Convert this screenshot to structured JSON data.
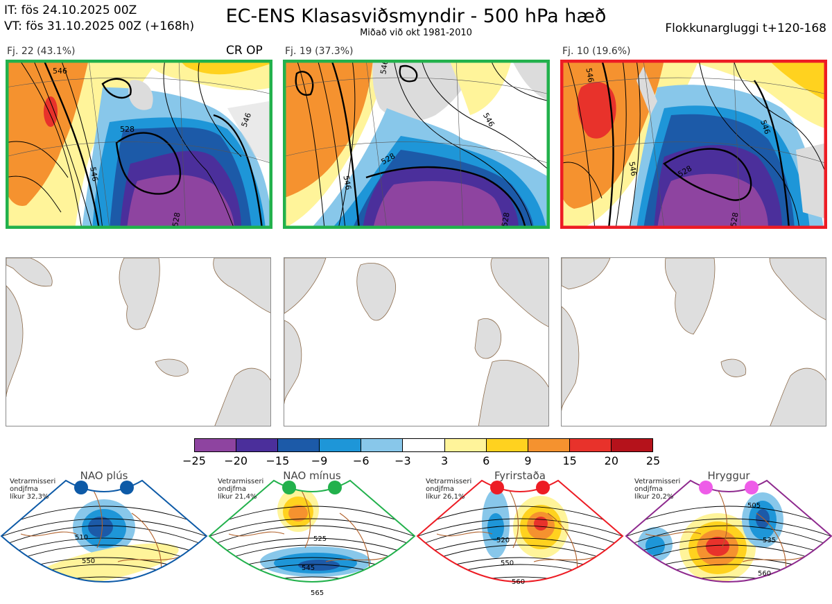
{
  "header": {
    "it_line": "IT: fös 24.10.2025 00Z",
    "vt_line": "VT: fös 31.10.2025 00Z  (+168h)",
    "title": "EC-ENS Klasasviðsmyndir - 500 hPa hæð",
    "subtitle": "Miðað við okt 1981-2010",
    "window": "Flokkunargluggi t+120-168"
  },
  "panels": [
    {
      "label": "Fj. 22 (43.1%)",
      "extra": "CR OP",
      "border_color": "#22b14c",
      "contours": [
        "546",
        "528",
        "546",
        "528",
        "546"
      ]
    },
    {
      "label": "Fj. 19 (37.3%)",
      "extra": "",
      "border_color": "#22b14c",
      "contours": [
        "546",
        "528",
        "546",
        "528",
        "546"
      ]
    },
    {
      "label": "Fj. 10 (19.6%)",
      "extra": "",
      "border_color": "#ed1c24",
      "contours": [
        "546",
        "528",
        "546",
        "528",
        "546"
      ]
    }
  ],
  "colorbar": {
    "colors": [
      "#8e44a0",
      "#4b2f9b",
      "#1c5aa8",
      "#1e96d8",
      "#88c7ea",
      "#ffffff",
      "#fff49a",
      "#ffd21f",
      "#f5922f",
      "#e8322b",
      "#b5121b"
    ],
    "ticks": [
      "−25",
      "−20",
      "−15",
      "−9",
      "−6",
      "−3",
      "3",
      "6",
      "9",
      "15",
      "20",
      "25"
    ]
  },
  "regimes": [
    {
      "title": "NAO plús",
      "note": [
        "Vetrarmisseri",
        "ondjfma",
        "líkur 32,3%"
      ],
      "dot_color": "#0d5aa7",
      "border_color": "#0d5aa7",
      "contours": [
        "510",
        "550"
      ]
    },
    {
      "title": "NAO mínus",
      "note": [
        "Vetrarmisseri",
        "ondjfma",
        "líkur 21,4%"
      ],
      "dot_color": "#22b14c",
      "border_color": "#22b14c",
      "contours": [
        "525",
        "545",
        "565"
      ]
    },
    {
      "title": "Fyrirstaða",
      "note": [
        "Vetrarmisseri",
        "ondjfma",
        "líkur 26,1%"
      ],
      "dot_color": "#ed1c24",
      "border_color": "#ed1c24",
      "contours": [
        "520",
        "550",
        "560"
      ]
    },
    {
      "title": "Hryggur",
      "note": [
        "Vetrarmisseri",
        "ondjfma",
        "líkur 20,2%"
      ],
      "dot_color": "#ee5ce8",
      "border_color": "#8e2a8e",
      "contours": [
        "505",
        "535",
        "560"
      ]
    }
  ]
}
